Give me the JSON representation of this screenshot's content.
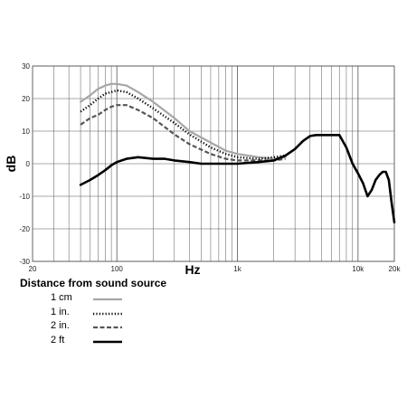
{
  "chart_data": {
    "type": "line",
    "xlabel": "Hz",
    "ylabel": "dB",
    "x_scale": "log",
    "xlim": [
      20,
      20000
    ],
    "ylim": [
      -30,
      30
    ],
    "x_ticks": [
      {
        "value": 20,
        "label": "20"
      },
      {
        "value": 100,
        "label": "100"
      },
      {
        "value": 1000,
        "label": "1k"
      },
      {
        "value": 10000,
        "label": "10k"
      },
      {
        "value": 20000,
        "label": "20k"
      }
    ],
    "y_ticks": [
      30,
      20,
      10,
      0,
      -10,
      -20,
      -30
    ],
    "grid": true,
    "legend_title": "Distance from sound source",
    "legend_position": "bottom-left",
    "series": [
      {
        "name": "1 cm",
        "style": "solid",
        "color": "#a6a6a6",
        "x": [
          50,
          60,
          70,
          80,
          90,
          100,
          120,
          150,
          200,
          300,
          400,
          600,
          800,
          1000,
          1500,
          2000,
          2500
        ],
        "y": [
          19,
          21,
          23,
          24,
          24.5,
          24.5,
          24,
          22,
          19,
          14,
          10,
          6.5,
          4,
          3,
          2,
          1.5,
          2
        ]
      },
      {
        "name": "1 in.",
        "style": "dotted",
        "color": "#000000",
        "x": [
          50,
          60,
          70,
          80,
          90,
          100,
          120,
          150,
          200,
          300,
          400,
          600,
          800,
          1000,
          1500,
          2000,
          2500
        ],
        "y": [
          16,
          18,
          20,
          21.5,
          22,
          22.5,
          22,
          20,
          17,
          12.5,
          9,
          5,
          3,
          2,
          1.5,
          2,
          2.5
        ]
      },
      {
        "name": "2 in.",
        "style": "dashed",
        "color": "#555555",
        "x": [
          50,
          60,
          70,
          80,
          90,
          100,
          120,
          150,
          200,
          300,
          400,
          600,
          800,
          1000,
          1500,
          2000,
          2500
        ],
        "y": [
          12,
          14,
          15,
          16.5,
          17.5,
          18,
          18,
          16.5,
          14,
          9,
          6,
          3,
          1.5,
          1,
          1,
          1,
          1.5
        ]
      },
      {
        "name": "2 ft",
        "style": "solid-thick",
        "color": "#000000",
        "x": [
          50,
          60,
          70,
          80,
          90,
          100,
          120,
          150,
          200,
          250,
          300,
          400,
          500,
          700,
          1000,
          1500,
          2000,
          2500,
          3000,
          3500,
          4000,
          4500,
          5000,
          6000,
          7000,
          8000,
          9000,
          10000,
          11000,
          12000,
          13000,
          14000,
          15000,
          16000,
          17000,
          18000,
          19000,
          20000
        ],
        "y": [
          -6.5,
          -5,
          -3.5,
          -2,
          -0.5,
          0.5,
          1.5,
          2,
          1.5,
          1.5,
          1,
          0.5,
          0,
          0,
          0,
          0.5,
          1,
          2.5,
          4.5,
          7,
          8.5,
          8.8,
          8.8,
          8.8,
          8.8,
          5,
          0,
          -3,
          -6,
          -10,
          -8,
          -5,
          -3.5,
          -2.5,
          -2.5,
          -5,
          -12,
          -18
        ]
      }
    ]
  }
}
